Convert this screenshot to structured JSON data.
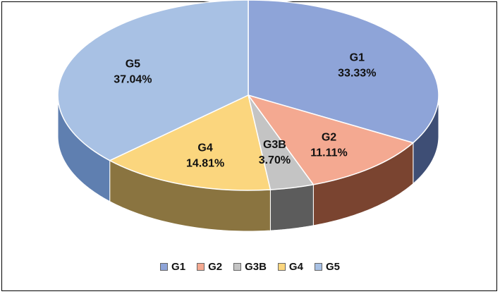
{
  "chart_data": {
    "type": "pie",
    "style": "3d",
    "title": "",
    "slices": [
      {
        "name": "G1",
        "value": 33.33,
        "label": "33.33%",
        "color": "#8ea4d8",
        "side_color": "#3e4e75"
      },
      {
        "name": "G2",
        "value": 11.11,
        "label": "11.11%",
        "color": "#f4a991",
        "side_color": "#7a4430"
      },
      {
        "name": "G3B",
        "value": 3.7,
        "label": "3.70%",
        "color": "#c4c4c4",
        "side_color": "#5c5c5c"
      },
      {
        "name": "G4",
        "value": 14.81,
        "label": "14.81%",
        "color": "#fbd67e",
        "side_color": "#8a7440"
      },
      {
        "name": "G5",
        "value": 37.04,
        "label": "37.04%",
        "color": "#a8c1e4",
        "side_color": "#5f7fb0"
      }
    ],
    "legend": {
      "position": "bottom",
      "entries": [
        "G1",
        "G2",
        "G3B",
        "G4",
        "G5"
      ]
    }
  }
}
